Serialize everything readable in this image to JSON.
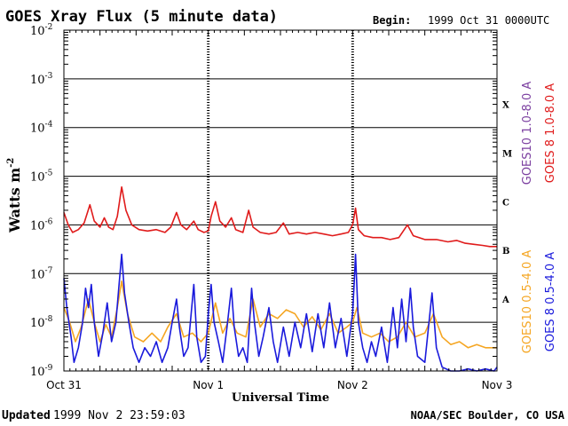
{
  "header": {
    "title": "GOES Xray Flux (5 minute data)",
    "begin_label": "Begin:",
    "begin_value": "1999 Oct 31 0000UTC"
  },
  "footer": {
    "updated_label": "Updated",
    "updated_value": "1999 Nov  2 23:59:03",
    "source": "NOAA/SEC Boulder, CO USA"
  },
  "chart_data": {
    "type": "line",
    "title": "GOES Xray Flux (5 minute data)",
    "xlabel": "Universal Time",
    "ylabel": "Watts m",
    "ylabel_superscript": "-2",
    "y_scale": "log",
    "ylim": [
      1e-09,
      0.01
    ],
    "y_ticks": [
      {
        "value": 0.01,
        "base": "10",
        "exp": "-2"
      },
      {
        "value": 0.001,
        "base": "10",
        "exp": "-3"
      },
      {
        "value": 0.0001,
        "base": "10",
        "exp": "-4"
      },
      {
        "value": 1e-05,
        "base": "10",
        "exp": "-5"
      },
      {
        "value": 1e-06,
        "base": "10",
        "exp": "-6"
      },
      {
        "value": 1e-07,
        "base": "10",
        "exp": "-7"
      },
      {
        "value": 1e-08,
        "base": "10",
        "exp": "-8"
      },
      {
        "value": 1e-09,
        "base": "10",
        "exp": "-9"
      }
    ],
    "x_ticks": [
      "Oct 31",
      "Nov 1",
      "Nov 2",
      "Nov 3"
    ],
    "x_range_days": [
      0,
      3
    ],
    "flare_classes": [
      {
        "label": "X",
        "value": 0.0003
      },
      {
        "label": "M",
        "value": 3e-05
      },
      {
        "label": "C",
        "value": 3e-06
      },
      {
        "label": "B",
        "value": 3e-07
      },
      {
        "label": "A",
        "value": 3e-08
      }
    ],
    "grid": true,
    "legend_position": "right",
    "legend": [
      {
        "label": "GOES10 1.0-8.0 A",
        "color": "#7b3fa0"
      },
      {
        "label": "GOES 8 1.0-8.0 A",
        "color": "#e01b1b"
      },
      {
        "label": "GOES10 0.5-4.0 A",
        "color": "#f5a623"
      },
      {
        "label": "GOES 8 0.5-4.0 A",
        "color": "#1a1adc"
      }
    ],
    "series": [
      {
        "name": "GOES 8 1.0-8.0 A",
        "color": "#e01b1b",
        "points": [
          [
            0.0,
            1.8e-06
          ],
          [
            0.03,
            1e-06
          ],
          [
            0.06,
            7e-07
          ],
          [
            0.1,
            8e-07
          ],
          [
            0.14,
            1.1e-06
          ],
          [
            0.18,
            2.6e-06
          ],
          [
            0.21,
            1.2e-06
          ],
          [
            0.25,
            9e-07
          ],
          [
            0.28,
            1.4e-06
          ],
          [
            0.31,
            9e-07
          ],
          [
            0.34,
            8e-07
          ],
          [
            0.37,
            1.5e-06
          ],
          [
            0.4,
            6e-06
          ],
          [
            0.43,
            2e-06
          ],
          [
            0.47,
            1e-06
          ],
          [
            0.52,
            8e-07
          ],
          [
            0.58,
            7.5e-07
          ],
          [
            0.64,
            8e-07
          ],
          [
            0.7,
            7e-07
          ],
          [
            0.74,
            9e-07
          ],
          [
            0.78,
            1.8e-06
          ],
          [
            0.81,
            1e-06
          ],
          [
            0.85,
            8e-07
          ],
          [
            0.9,
            1.2e-06
          ],
          [
            0.93,
            8e-07
          ],
          [
            0.97,
            7e-07
          ],
          [
            1.0,
            7.5e-07
          ],
          [
            1.02,
            1.5e-06
          ],
          [
            1.05,
            3e-06
          ],
          [
            1.08,
            1.2e-06
          ],
          [
            1.12,
            9e-07
          ],
          [
            1.16,
            1.4e-06
          ],
          [
            1.19,
            8e-07
          ],
          [
            1.24,
            7e-07
          ],
          [
            1.28,
            2e-06
          ],
          [
            1.31,
            9e-07
          ],
          [
            1.36,
            7e-07
          ],
          [
            1.42,
            6.5e-07
          ],
          [
            1.47,
            7e-07
          ],
          [
            1.52,
            1.1e-06
          ],
          [
            1.56,
            6.5e-07
          ],
          [
            1.62,
            7e-07
          ],
          [
            1.68,
            6.5e-07
          ],
          [
            1.74,
            7e-07
          ],
          [
            1.8,
            6.5e-07
          ],
          [
            1.86,
            6e-07
          ],
          [
            1.92,
            6.5e-07
          ],
          [
            1.97,
            7e-07
          ],
          [
            2.0,
            1e-06
          ],
          [
            2.02,
            2.2e-06
          ],
          [
            2.04,
            8e-07
          ],
          [
            2.08,
            6e-07
          ],
          [
            2.14,
            5.5e-07
          ],
          [
            2.2,
            5.5e-07
          ],
          [
            2.26,
            5e-07
          ],
          [
            2.32,
            5.5e-07
          ],
          [
            2.38,
            1e-06
          ],
          [
            2.42,
            6e-07
          ],
          [
            2.5,
            5e-07
          ],
          [
            2.58,
            5e-07
          ],
          [
            2.66,
            4.5e-07
          ],
          [
            2.72,
            4.8e-07
          ],
          [
            2.78,
            4.2e-07
          ],
          [
            2.84,
            4e-07
          ],
          [
            2.9,
            3.8e-07
          ],
          [
            2.95,
            3.6e-07
          ],
          [
            3.0,
            3.6e-07
          ]
        ]
      },
      {
        "name": "GOES10 0.5-4.0 A",
        "color": "#f5a623",
        "points": [
          [
            0.0,
            2e-08
          ],
          [
            0.04,
            1e-08
          ],
          [
            0.08,
            4e-09
          ],
          [
            0.12,
            8e-09
          ],
          [
            0.17,
            3e-08
          ],
          [
            0.21,
            1e-08
          ],
          [
            0.25,
            4e-09
          ],
          [
            0.29,
            9e-09
          ],
          [
            0.33,
            5e-09
          ],
          [
            0.37,
            2e-08
          ],
          [
            0.4,
            7e-08
          ],
          [
            0.44,
            1.5e-08
          ],
          [
            0.49,
            5e-09
          ],
          [
            0.55,
            4e-09
          ],
          [
            0.61,
            6e-09
          ],
          [
            0.67,
            4e-09
          ],
          [
            0.72,
            8e-09
          ],
          [
            0.78,
            1.5e-08
          ],
          [
            0.83,
            5e-09
          ],
          [
            0.89,
            6e-09
          ],
          [
            0.95,
            4e-09
          ],
          [
            1.0,
            6e-09
          ],
          [
            1.05,
            2.5e-08
          ],
          [
            1.1,
            6e-09
          ],
          [
            1.15,
            1.2e-08
          ],
          [
            1.2,
            6e-09
          ],
          [
            1.26,
            5e-09
          ],
          [
            1.31,
            3e-08
          ],
          [
            1.36,
            8e-09
          ],
          [
            1.42,
            1.5e-08
          ],
          [
            1.48,
            1.2e-08
          ],
          [
            1.54,
            1.8e-08
          ],
          [
            1.6,
            1.5e-08
          ],
          [
            1.66,
            8e-09
          ],
          [
            1.72,
            1.3e-08
          ],
          [
            1.78,
            7e-09
          ],
          [
            1.84,
            1.5e-08
          ],
          [
            1.9,
            6e-09
          ],
          [
            1.96,
            8e-09
          ],
          [
            2.0,
            1e-08
          ],
          [
            2.03,
            2e-08
          ],
          [
            2.07,
            6e-09
          ],
          [
            2.13,
            5e-09
          ],
          [
            2.19,
            6e-09
          ],
          [
            2.25,
            4e-09
          ],
          [
            2.31,
            5e-09
          ],
          [
            2.37,
            1e-08
          ],
          [
            2.43,
            5e-09
          ],
          [
            2.5,
            6e-09
          ],
          [
            2.56,
            1.5e-08
          ],
          [
            2.62,
            5e-09
          ],
          [
            2.68,
            3.5e-09
          ],
          [
            2.74,
            4e-09
          ],
          [
            2.8,
            3e-09
          ],
          [
            2.86,
            3.5e-09
          ],
          [
            2.92,
            3e-09
          ],
          [
            3.0,
            3e-09
          ]
        ]
      },
      {
        "name": "GOES 8 0.5-4.0 A",
        "color": "#1a1adc",
        "points": [
          [
            0.0,
            8e-08
          ],
          [
            0.02,
            2e-08
          ],
          [
            0.05,
            5e-09
          ],
          [
            0.07,
            1.5e-09
          ],
          [
            0.1,
            3e-09
          ],
          [
            0.13,
            1e-08
          ],
          [
            0.15,
            5e-08
          ],
          [
            0.17,
            2e-08
          ],
          [
            0.19,
            6e-08
          ],
          [
            0.21,
            1e-08
          ],
          [
            0.24,
            2e-09
          ],
          [
            0.27,
            6e-09
          ],
          [
            0.3,
            2.5e-08
          ],
          [
            0.33,
            4e-09
          ],
          [
            0.36,
            1e-08
          ],
          [
            0.38,
            5e-08
          ],
          [
            0.4,
            2.5e-07
          ],
          [
            0.42,
            4e-08
          ],
          [
            0.45,
            1e-08
          ],
          [
            0.48,
            3e-09
          ],
          [
            0.52,
            1.5e-09
          ],
          [
            0.56,
            3e-09
          ],
          [
            0.6,
            2e-09
          ],
          [
            0.64,
            4e-09
          ],
          [
            0.68,
            1.5e-09
          ],
          [
            0.72,
            3e-09
          ],
          [
            0.75,
            1e-08
          ],
          [
            0.78,
            3e-08
          ],
          [
            0.8,
            8e-09
          ],
          [
            0.83,
            2e-09
          ],
          [
            0.86,
            3e-09
          ],
          [
            0.9,
            6e-08
          ],
          [
            0.92,
            5e-09
          ],
          [
            0.95,
            1.5e-09
          ],
          [
            0.98,
            2e-09
          ],
          [
            1.0,
            1.5e-08
          ],
          [
            1.02,
            6e-08
          ],
          [
            1.04,
            1e-08
          ],
          [
            1.07,
            4e-09
          ],
          [
            1.1,
            1.5e-09
          ],
          [
            1.13,
            8e-09
          ],
          [
            1.16,
            5e-08
          ],
          [
            1.18,
            8e-09
          ],
          [
            1.21,
            2e-09
          ],
          [
            1.24,
            3e-09
          ],
          [
            1.27,
            1.5e-09
          ],
          [
            1.3,
            5e-08
          ],
          [
            1.32,
            1e-08
          ],
          [
            1.35,
            2e-09
          ],
          [
            1.38,
            5e-09
          ],
          [
            1.42,
            2e-08
          ],
          [
            1.45,
            4e-09
          ],
          [
            1.48,
            1.5e-09
          ],
          [
            1.52,
            8e-09
          ],
          [
            1.56,
            2e-09
          ],
          [
            1.6,
            1e-08
          ],
          [
            1.64,
            3e-09
          ],
          [
            1.68,
            1.5e-08
          ],
          [
            1.72,
            2.5e-09
          ],
          [
            1.76,
            1.5e-08
          ],
          [
            1.8,
            3e-09
          ],
          [
            1.84,
            2.5e-08
          ],
          [
            1.88,
            3e-09
          ],
          [
            1.92,
            1.2e-08
          ],
          [
            1.96,
            2e-09
          ],
          [
            2.0,
            1.5e-08
          ],
          [
            2.01,
            6e-08
          ],
          [
            2.02,
            2.5e-07
          ],
          [
            2.04,
            1e-08
          ],
          [
            2.07,
            3e-09
          ],
          [
            2.1,
            1.5e-09
          ],
          [
            2.13,
            4e-09
          ],
          [
            2.16,
            2e-09
          ],
          [
            2.2,
            8e-09
          ],
          [
            2.24,
            1.5e-09
          ],
          [
            2.28,
            2e-08
          ],
          [
            2.31,
            3e-09
          ],
          [
            2.34,
            3e-08
          ],
          [
            2.37,
            4e-09
          ],
          [
            2.4,
            5e-08
          ],
          [
            2.42,
            8e-09
          ],
          [
            2.45,
            2e-09
          ],
          [
            2.5,
            1.5e-09
          ],
          [
            2.55,
            4e-08
          ],
          [
            2.58,
            3e-09
          ],
          [
            2.62,
            1.2e-09
          ],
          [
            2.68,
            1e-09
          ],
          [
            2.74,
            1e-09
          ],
          [
            2.8,
            1.1e-09
          ],
          [
            2.86,
            1e-09
          ],
          [
            2.92,
            1.1e-09
          ],
          [
            2.98,
            1e-09
          ],
          [
            3.0,
            1.2e-09
          ]
        ]
      }
    ]
  }
}
